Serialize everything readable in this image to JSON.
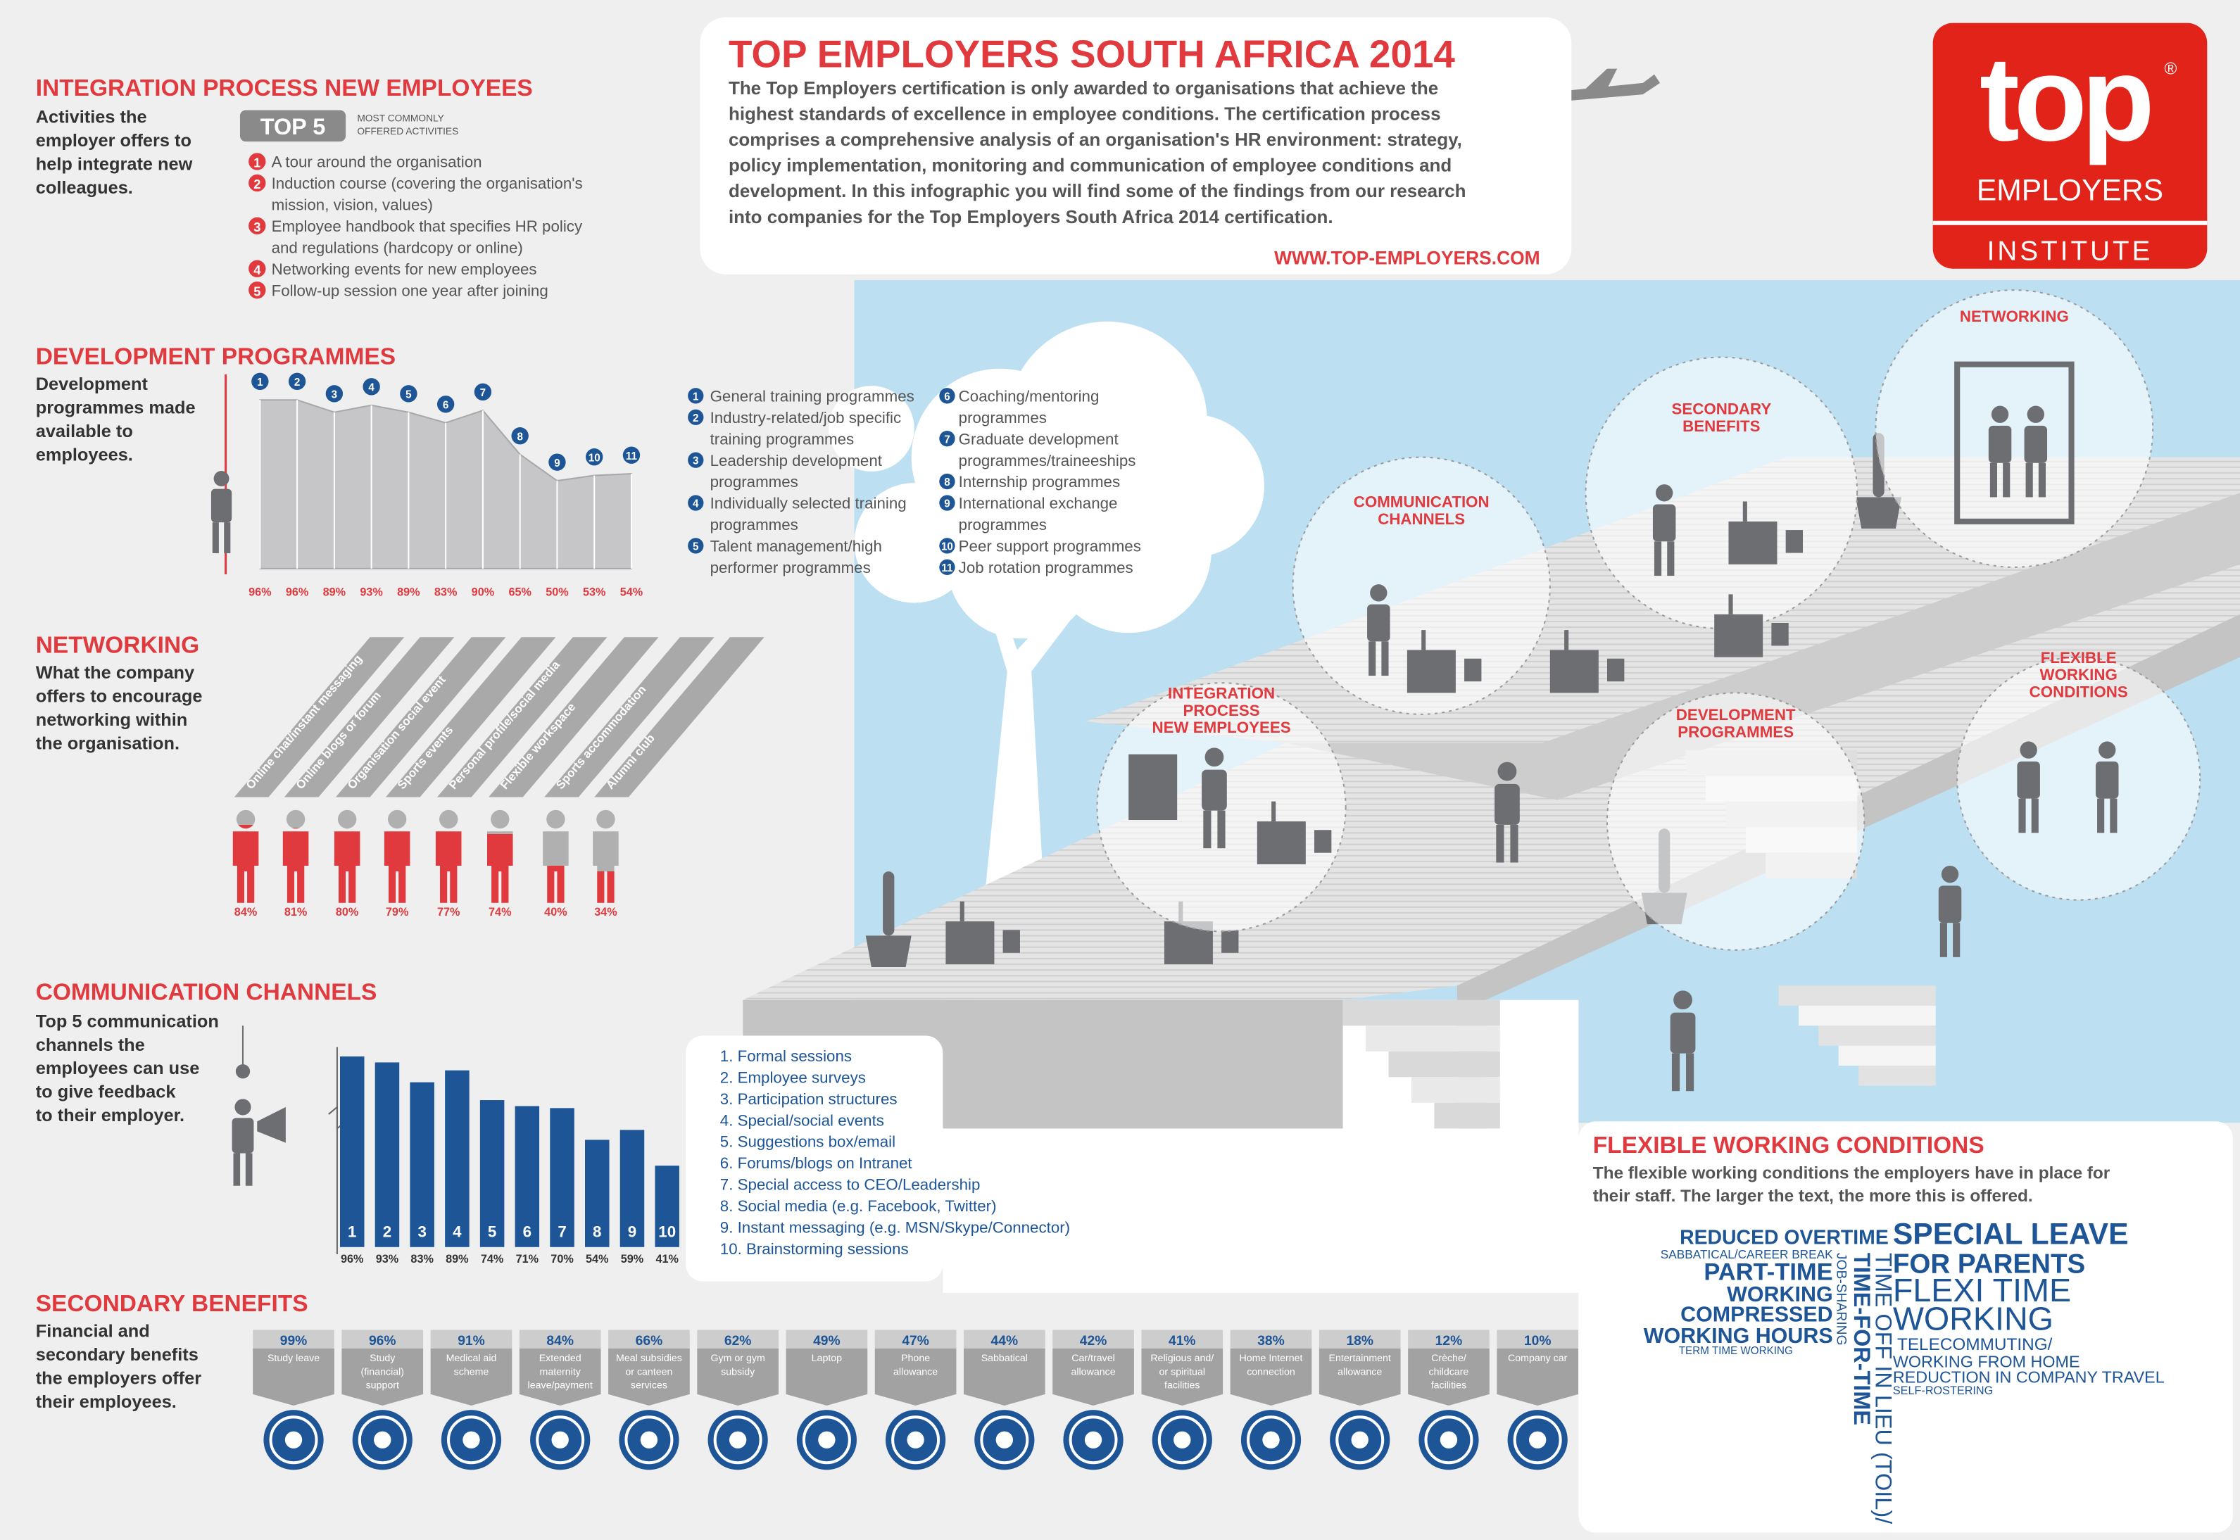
{
  "header": {
    "title": "TOP EMPLOYERS SOUTH AFRICA 2014",
    "intro": [
      "The Top Employers certification is only awarded to organisations that achieve the",
      "highest standards of excellence in employee conditions. The certification process",
      "comprises a comprehensive analysis of an organisation's HR environment: strategy,",
      "policy implementation, monitoring and communication of employee conditions and",
      "development. In this infographic you will find some of the findings from our research",
      "into companies for the Top Employers South Africa 2014 certification."
    ],
    "url": "WWW.TOP-EMPLOYERS.COM"
  },
  "logo": {
    "word": "top",
    "registered": "®",
    "line1": "EMPLOYERS",
    "line2": "INSTITUTE"
  },
  "integration": {
    "title": "INTEGRATION PROCESS NEW EMPLOYEES",
    "description": [
      "Activities the",
      "employer offers to",
      "help integrate new",
      "colleagues."
    ],
    "badge": "TOP 5",
    "badge_note": [
      "MOST COMMONLY",
      "OFFERED ACTIVITIES"
    ],
    "items": [
      {
        "number": "1",
        "lines": [
          "A tour around the organisation"
        ]
      },
      {
        "number": "2",
        "lines": [
          "Induction course (covering the organisation's",
          "mission, vision, values)"
        ]
      },
      {
        "number": "3",
        "lines": [
          "Employee handbook that specifies HR policy",
          "and regulations (hardcopy or online)"
        ]
      },
      {
        "number": "4",
        "lines": [
          "Networking events for new employees"
        ]
      },
      {
        "number": "5",
        "lines": [
          "Follow-up session one year after joining"
        ]
      }
    ]
  },
  "development": {
    "title": "DEVELOPMENT PROGRAMMES",
    "description": [
      "Development",
      "programmes made",
      "available to",
      "employees."
    ],
    "chart": {
      "type": "area",
      "values": [
        96,
        96,
        89,
        93,
        89,
        83,
        90,
        65,
        50,
        53,
        54
      ],
      "value_labels": [
        "96%",
        "96%",
        "89%",
        "93%",
        "89%",
        "83%",
        "90%",
        "65%",
        "50%",
        "53%",
        "54%"
      ],
      "ylim": [
        0,
        100
      ]
    },
    "legend": [
      {
        "number": "1",
        "lines": [
          "General training programmes"
        ]
      },
      {
        "number": "2",
        "lines": [
          "Industry-related/job specific",
          "training programmes"
        ]
      },
      {
        "number": "3",
        "lines": [
          "Leadership development",
          "programmes"
        ]
      },
      {
        "number": "4",
        "lines": [
          "Individually selected training",
          "programmes"
        ]
      },
      {
        "number": "5",
        "lines": [
          "Talent management/high",
          "performer programmes"
        ]
      },
      {
        "number": "6",
        "lines": [
          "Coaching/mentoring",
          "programmes"
        ]
      },
      {
        "number": "7",
        "lines": [
          "Graduate development",
          "programmes/traineeships"
        ]
      },
      {
        "number": "8",
        "lines": [
          "Internship programmes"
        ]
      },
      {
        "number": "9",
        "lines": [
          "International exchange",
          "programmes"
        ]
      },
      {
        "number": "10",
        "lines": [
          "Peer support programmes"
        ]
      },
      {
        "number": "11",
        "lines": [
          "Job rotation programmes"
        ]
      }
    ]
  },
  "networking": {
    "title": "NETWORKING",
    "description": [
      "What the company",
      "offers to encourage",
      "networking within",
      "the organisation."
    ],
    "items": [
      {
        "label": "Online chat/instant messaging",
        "value": 84,
        "value_label": "84%"
      },
      {
        "label": "Online blogs or forum",
        "value": 81,
        "value_label": "81%"
      },
      {
        "label": "Organisation social event",
        "value": 80,
        "value_label": "80%"
      },
      {
        "label": "Sports events",
        "value": 79,
        "value_label": "79%"
      },
      {
        "label": "Personal profile/social media",
        "value": 77,
        "value_label": "77%"
      },
      {
        "label": "Flexible workspace",
        "value": 74,
        "value_label": "74%"
      },
      {
        "label": "Sports accommodation",
        "value": 40,
        "value_label": "40%"
      },
      {
        "label": "Alumni club",
        "value": 34,
        "value_label": "34%"
      }
    ]
  },
  "communication": {
    "title": "COMMUNICATION CHANNELS",
    "description": [
      "Top 5 communication",
      "channels the",
      "employees can use",
      "to give feedback",
      "to their employer."
    ],
    "chart": {
      "type": "bar",
      "values": [
        96,
        93,
        83,
        89,
        74,
        71,
        70,
        54,
        59,
        41
      ],
      "value_labels": [
        "96%",
        "93%",
        "83%",
        "89%",
        "74%",
        "71%",
        "70%",
        "54%",
        "59%",
        "41%"
      ],
      "bar_labels": [
        "1",
        "2",
        "3",
        "4",
        "5",
        "6",
        "7",
        "8",
        "9",
        "10"
      ],
      "ylim": [
        0,
        100
      ],
      "color": "#1d5596"
    },
    "legend": [
      "1. Formal sessions",
      "2. Employee surveys",
      "3. Participation structures",
      "4. Special/social events",
      "5. Suggestions box/email",
      "6. Forums/blogs on Intranet",
      "7. Special access to CEO/Leadership",
      "8. Social media (e.g. Facebook, Twitter)",
      "9. Instant messaging (e.g. MSN/Skype/Connector)",
      "10. Brainstorming sessions"
    ]
  },
  "secondary": {
    "title": "SECONDARY BENEFITS",
    "description": [
      "Financial and",
      "secondary benefits",
      "the employers offer",
      "their employees."
    ],
    "items": [
      {
        "value": 99,
        "value_label": "99%",
        "lines": [
          "Study leave"
        ]
      },
      {
        "value": 96,
        "value_label": "96%",
        "lines": [
          "Study",
          "(financial)",
          "support"
        ]
      },
      {
        "value": 91,
        "value_label": "91%",
        "lines": [
          "Medical aid",
          "scheme"
        ]
      },
      {
        "value": 84,
        "value_label": "84%",
        "lines": [
          "Extended",
          "maternity",
          "leave/payment"
        ]
      },
      {
        "value": 66,
        "value_label": "66%",
        "lines": [
          "Meal subsidies",
          "or canteen",
          "services"
        ]
      },
      {
        "value": 62,
        "value_label": "62%",
        "lines": [
          "Gym or gym",
          "subsidy"
        ]
      },
      {
        "value": 49,
        "value_label": "49%",
        "lines": [
          "Laptop"
        ]
      },
      {
        "value": 47,
        "value_label": "47%",
        "lines": [
          "Phone",
          "allowance"
        ]
      },
      {
        "value": 44,
        "value_label": "44%",
        "lines": [
          "Sabbatical"
        ]
      },
      {
        "value": 42,
        "value_label": "42%",
        "lines": [
          "Car/travel",
          "allowance"
        ]
      },
      {
        "value": 41,
        "value_label": "41%",
        "lines": [
          "Religious and/",
          "or spiritual",
          "facilities"
        ]
      },
      {
        "value": 38,
        "value_label": "38%",
        "lines": [
          "Home Internet",
          "connection"
        ]
      },
      {
        "value": 18,
        "value_label": "18%",
        "lines": [
          "Entertainment",
          "allowance"
        ]
      },
      {
        "value": 12,
        "value_label": "12%",
        "lines": [
          "Crèche/",
          "childcare",
          "facilities"
        ]
      },
      {
        "value": 10,
        "value_label": "10%",
        "lines": [
          "Company car"
        ]
      }
    ]
  },
  "flexible": {
    "title": "FLEXIBLE WORKING CONDITIONS",
    "description": [
      "The flexible working conditions the employers have in place for",
      "their staff. The larger the text, the more this is offered."
    ],
    "terms": [
      "REDUCED OVERTIME",
      "SABBATICAL/CAREER BREAK",
      "PART-TIME",
      "WORKING",
      "COMPRESSED",
      "WORKING HOURS",
      "TERM TIME WORKING",
      "JOB-SHARING",
      "TIME-FOR-TIME",
      "TIME OFF IN LIEU (TOIL)/",
      "SPECIAL LEAVE",
      "FOR PARENTS",
      "FLEXI TIME",
      "WORKING",
      "TELECOMMUTING/",
      "WORKING FROM HOME",
      "REDUCTION IN COMPANY TRAVEL",
      "SELF-ROSTERING"
    ]
  },
  "scene": {
    "labels": [
      [
        "NETWORKING"
      ],
      [
        "SECONDARY",
        "BENEFITS"
      ],
      [
        "COMMUNICATION",
        "CHANNELS"
      ],
      [
        "INTEGRATION",
        "PROCESS",
        "NEW EMPLOYEES"
      ],
      [
        "DEVELOPMENT",
        "PROGRAMMES"
      ],
      [
        "FLEXIBLE",
        "WORKING",
        "CONDITIONS"
      ]
    ]
  }
}
